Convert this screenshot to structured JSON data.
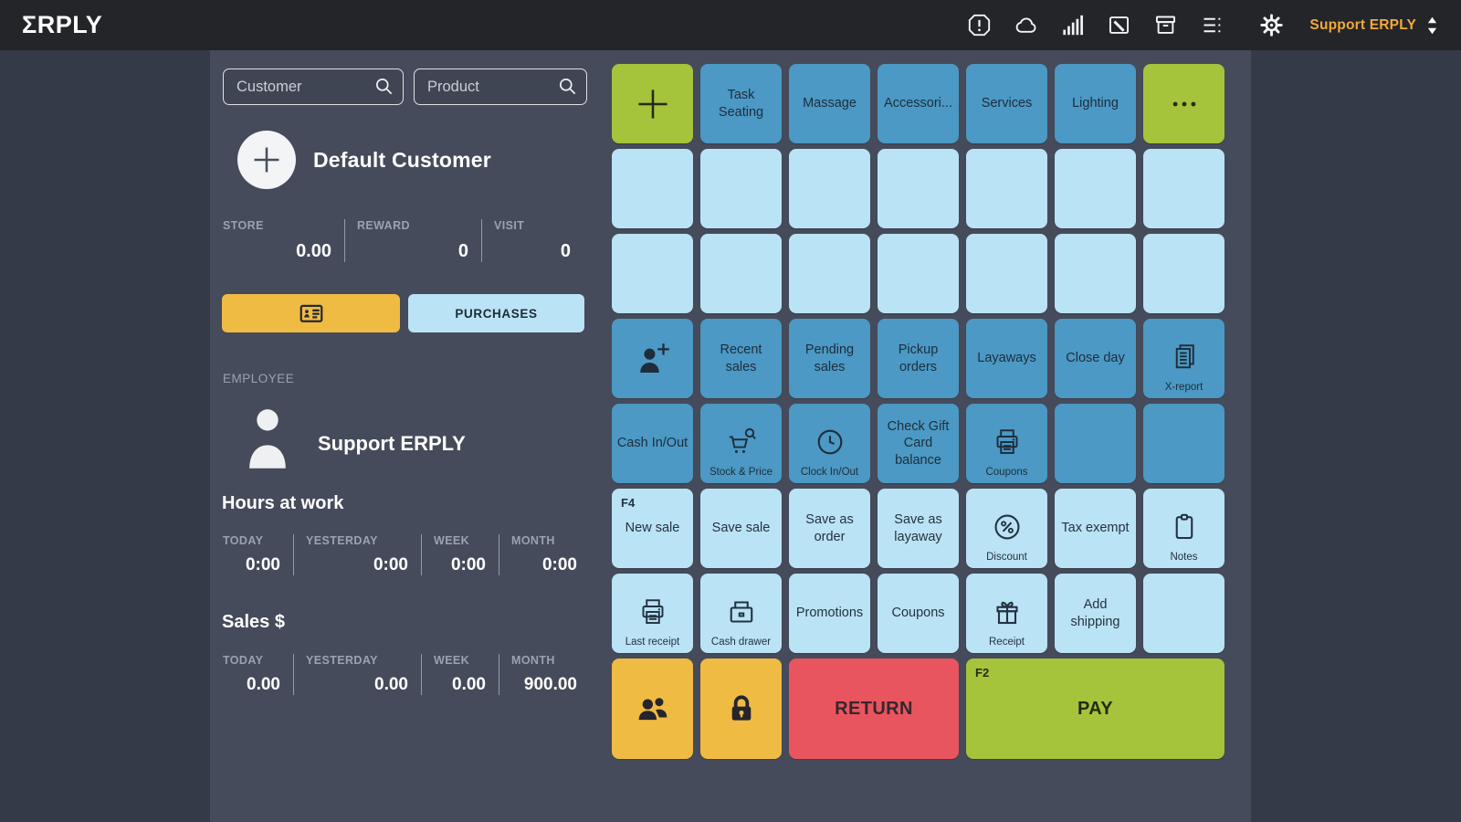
{
  "topbar": {
    "logo": "ΣRPLY",
    "icons": [
      "alert-octagon",
      "cloud",
      "signal-bars",
      "image",
      "archive",
      "menu-list",
      "settings-gear"
    ],
    "user_label": "Support ERPLY"
  },
  "search": {
    "customer_placeholder": "Customer",
    "product_placeholder": "Product"
  },
  "customer": {
    "name": "Default Customer",
    "stats": [
      {
        "label": "STORE",
        "value": "0.00"
      },
      {
        "label": "REWARD",
        "value": "0"
      },
      {
        "label": "VISIT",
        "value": "0"
      }
    ],
    "purchases_label": "PURCHASES"
  },
  "employee": {
    "section_label": "EMPLOYEE",
    "name": "Support ERPLY",
    "hours": {
      "title": "Hours at work",
      "stats": [
        {
          "label": "TODAY",
          "value": "0:00"
        },
        {
          "label": "YESTERDAY",
          "value": "0:00"
        },
        {
          "label": "WEEK",
          "value": "0:00"
        },
        {
          "label": "MONTH",
          "value": "0:00"
        }
      ]
    },
    "sales": {
      "title": "Sales $",
      "stats": [
        {
          "label": "TODAY",
          "value": "0.00"
        },
        {
          "label": "YESTERDAY",
          "value": "0.00"
        },
        {
          "label": "WEEK",
          "value": "0.00"
        },
        {
          "label": "MONTH",
          "value": "900.00"
        }
      ]
    }
  },
  "grid": {
    "rows": [
      {
        "cells": [
          {
            "icon": "plus",
            "color": "green"
          },
          {
            "label": "Task Seating",
            "color": "blue"
          },
          {
            "label": "Massage",
            "color": "blue"
          },
          {
            "label": "Accessori...",
            "color": "blue"
          },
          {
            "label": "Services",
            "color": "blue"
          },
          {
            "label": "Lighting",
            "color": "blue"
          },
          {
            "icon": "ellipsis",
            "color": "green"
          }
        ]
      },
      {
        "cells": [
          {
            "color": "lightblue"
          },
          {
            "color": "lightblue"
          },
          {
            "color": "lightblue"
          },
          {
            "color": "lightblue"
          },
          {
            "color": "lightblue"
          },
          {
            "color": "lightblue"
          },
          {
            "color": "lightblue"
          }
        ]
      },
      {
        "cells": [
          {
            "color": "lightblue"
          },
          {
            "color": "lightblue"
          },
          {
            "color": "lightblue"
          },
          {
            "color": "lightblue"
          },
          {
            "color": "lightblue"
          },
          {
            "color": "lightblue"
          },
          {
            "color": "lightblue"
          }
        ]
      },
      {
        "cells": [
          {
            "icon": "person-plus",
            "color": "blue"
          },
          {
            "label": "Recent sales",
            "color": "blue"
          },
          {
            "label": "Pending sales",
            "color": "blue"
          },
          {
            "label": "Pickup orders",
            "color": "blue"
          },
          {
            "label": "Layaways",
            "color": "blue"
          },
          {
            "label": "Close day",
            "color": "blue"
          },
          {
            "icon": "report",
            "sublabel": "X-report",
            "color": "blue"
          }
        ]
      },
      {
        "cells": [
          {
            "label": "Cash In/Out",
            "color": "blue"
          },
          {
            "icon": "cart-search",
            "sublabel": "Stock & Price",
            "color": "blue"
          },
          {
            "icon": "clock",
            "sublabel": "Clock In/Out",
            "color": "blue"
          },
          {
            "label": "Check Gift Card balance",
            "color": "blue"
          },
          {
            "icon": "printer",
            "sublabel": "Coupons",
            "color": "blue"
          },
          {
            "color": "blue"
          },
          {
            "color": "blue"
          }
        ]
      },
      {
        "cells": [
          {
            "hotkey": "F4",
            "label": "New sale",
            "color": "lightblue"
          },
          {
            "label": "Save sale",
            "color": "lightblue"
          },
          {
            "label": "Save as order",
            "color": "lightblue"
          },
          {
            "label": "Save as layaway",
            "color": "lightblue"
          },
          {
            "icon": "percent",
            "sublabel": "Discount",
            "color": "lightblue"
          },
          {
            "label": "Tax exempt",
            "color": "lightblue"
          },
          {
            "icon": "clipboard",
            "sublabel": "Notes",
            "color": "lightblue"
          }
        ]
      },
      {
        "cells": [
          {
            "icon": "printer",
            "sublabel": "Last receipt",
            "color": "lightblue"
          },
          {
            "icon": "drawer",
            "sublabel": "Cash drawer",
            "color": "lightblue"
          },
          {
            "label": "Promotions",
            "color": "lightblue"
          },
          {
            "label": "Coupons",
            "color": "lightblue"
          },
          {
            "icon": "gift",
            "sublabel": "Receipt",
            "color": "lightblue"
          },
          {
            "label": "Add shipping",
            "color": "lightblue"
          },
          {
            "color": "lightblue"
          }
        ]
      },
      {
        "cells": [
          {
            "icon": "people",
            "color": "yellow"
          },
          {
            "icon": "lock",
            "color": "yellow"
          },
          {
            "label": "RETURN",
            "color": "red",
            "span": 2
          },
          {
            "hotkey": "F2",
            "label": "PAY",
            "color": "green",
            "span": 3
          }
        ]
      }
    ]
  },
  "colors": {
    "green": "#a5c33b",
    "blue": "#4b99c4",
    "light_blue": "#bae3f5",
    "yellow": "#f0bb43",
    "red": "#e9555e",
    "accent_orange": "#f2a93c",
    "panel_background": "#454b5a",
    "outer_background": "#343a47",
    "topbar_background": "#232529"
  }
}
